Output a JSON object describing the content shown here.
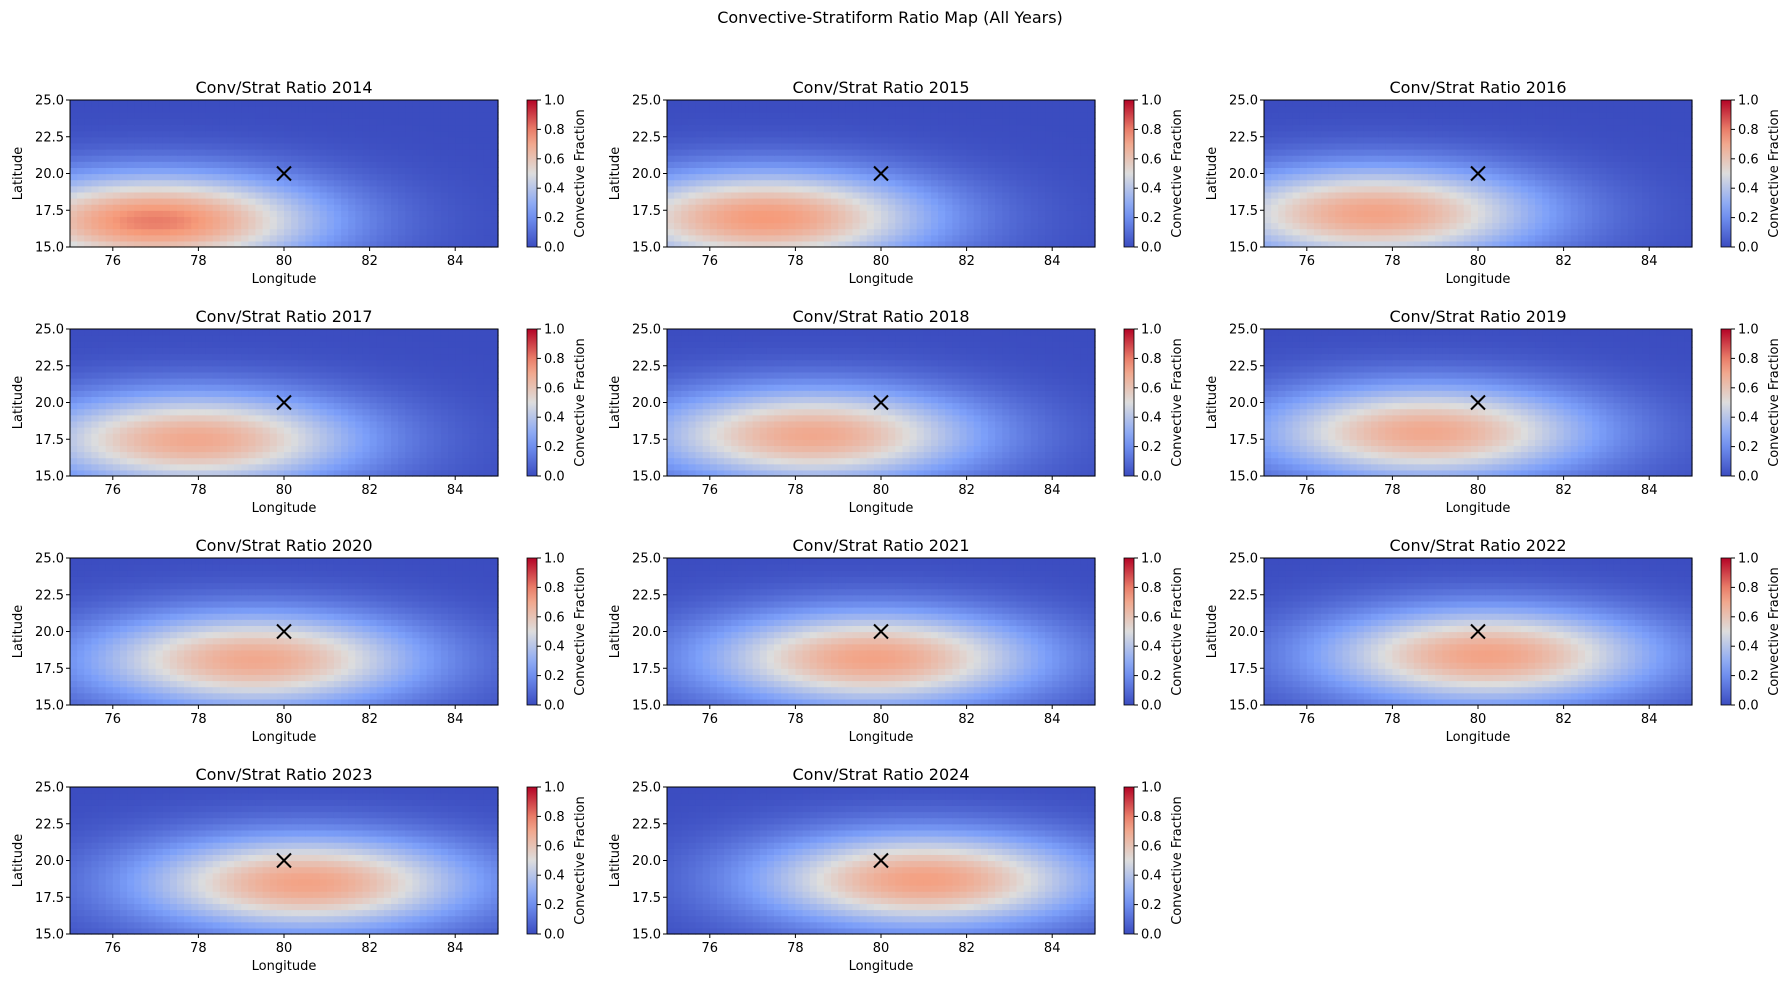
{
  "figure": {
    "suptitle": "Convective-Stratiform Ratio Map (All Years)"
  },
  "chart_data": {
    "type": "heatmap",
    "colormap": "coolwarm",
    "colorbar": {
      "label": "Convective Fraction",
      "range": [
        0.0,
        1.0
      ],
      "ticks": [
        "0.0",
        "0.2",
        "0.4",
        "0.6",
        "0.8",
        "1.0"
      ]
    },
    "x_range": [
      75,
      85
    ],
    "y_range": [
      15,
      25
    ],
    "xlabel": "Longitude",
    "ylabel": "Latitude",
    "x_ticks": [
      "76",
      "78",
      "80",
      "82",
      "84"
    ],
    "y_ticks": [
      "15.0",
      "17.5",
      "20.0",
      "22.5",
      "25.0"
    ],
    "marker": {
      "symbol": "x",
      "lon": 80,
      "lat": 20
    },
    "panels": [
      {
        "title": "Conv/Strat Ratio 2014",
        "peak_lon": 77.0,
        "peak_lat": 16.8,
        "peak_value": 0.8,
        "spread_lon": 2.8,
        "spread_lat": 2.3
      },
      {
        "title": "Conv/Strat Ratio 2015",
        "peak_lon": 77.3,
        "peak_lat": 17.0,
        "peak_value": 0.75,
        "spread_lon": 2.8,
        "spread_lat": 2.3
      },
      {
        "title": "Conv/Strat Ratio 2016",
        "peak_lon": 77.6,
        "peak_lat": 17.3,
        "peak_value": 0.72,
        "spread_lon": 2.8,
        "spread_lat": 2.3
      },
      {
        "title": "Conv/Strat Ratio 2017",
        "peak_lon": 77.9,
        "peak_lat": 17.5,
        "peak_value": 0.7,
        "spread_lon": 2.8,
        "spread_lat": 2.3
      },
      {
        "title": "Conv/Strat Ratio 2018",
        "peak_lon": 78.4,
        "peak_lat": 17.8,
        "peak_value": 0.7,
        "spread_lon": 2.8,
        "spread_lat": 2.3
      },
      {
        "title": "Conv/Strat Ratio 2019",
        "peak_lon": 78.8,
        "peak_lat": 18.0,
        "peak_value": 0.7,
        "spread_lon": 2.8,
        "spread_lat": 2.3
      },
      {
        "title": "Conv/Strat Ratio 2020",
        "peak_lon": 79.3,
        "peak_lat": 18.1,
        "peak_value": 0.7,
        "spread_lon": 2.8,
        "spread_lat": 2.3
      },
      {
        "title": "Conv/Strat Ratio 2021",
        "peak_lon": 79.8,
        "peak_lat": 18.2,
        "peak_value": 0.72,
        "spread_lon": 2.8,
        "spread_lat": 2.3
      },
      {
        "title": "Conv/Strat Ratio 2022",
        "peak_lon": 80.2,
        "peak_lat": 18.4,
        "peak_value": 0.72,
        "spread_lon": 2.8,
        "spread_lat": 2.3
      },
      {
        "title": "Conv/Strat Ratio 2023",
        "peak_lon": 80.5,
        "peak_lat": 18.5,
        "peak_value": 0.72,
        "spread_lon": 2.8,
        "spread_lat": 2.3
      },
      {
        "title": "Conv/Strat Ratio 2024",
        "peak_lon": 81.0,
        "peak_lat": 18.7,
        "peak_value": 0.73,
        "spread_lon": 2.8,
        "spread_lat": 2.3
      }
    ]
  }
}
